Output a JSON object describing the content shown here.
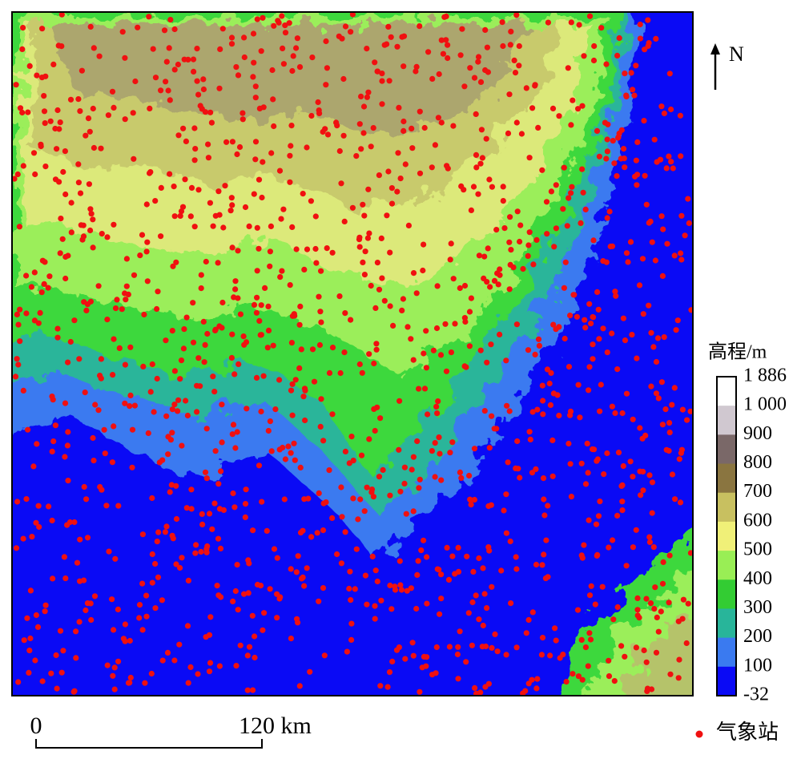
{
  "north": "N",
  "legend": {
    "title": "高程/m",
    "labels": [
      "1 886",
      "1 000",
      "900",
      "800",
      "700",
      "600",
      "500",
      "400",
      "300",
      "200",
      "100",
      "-32"
    ]
  },
  "scale_bar": {
    "start": "0",
    "end": "120 km"
  },
  "station_legend": "气象站"
}
